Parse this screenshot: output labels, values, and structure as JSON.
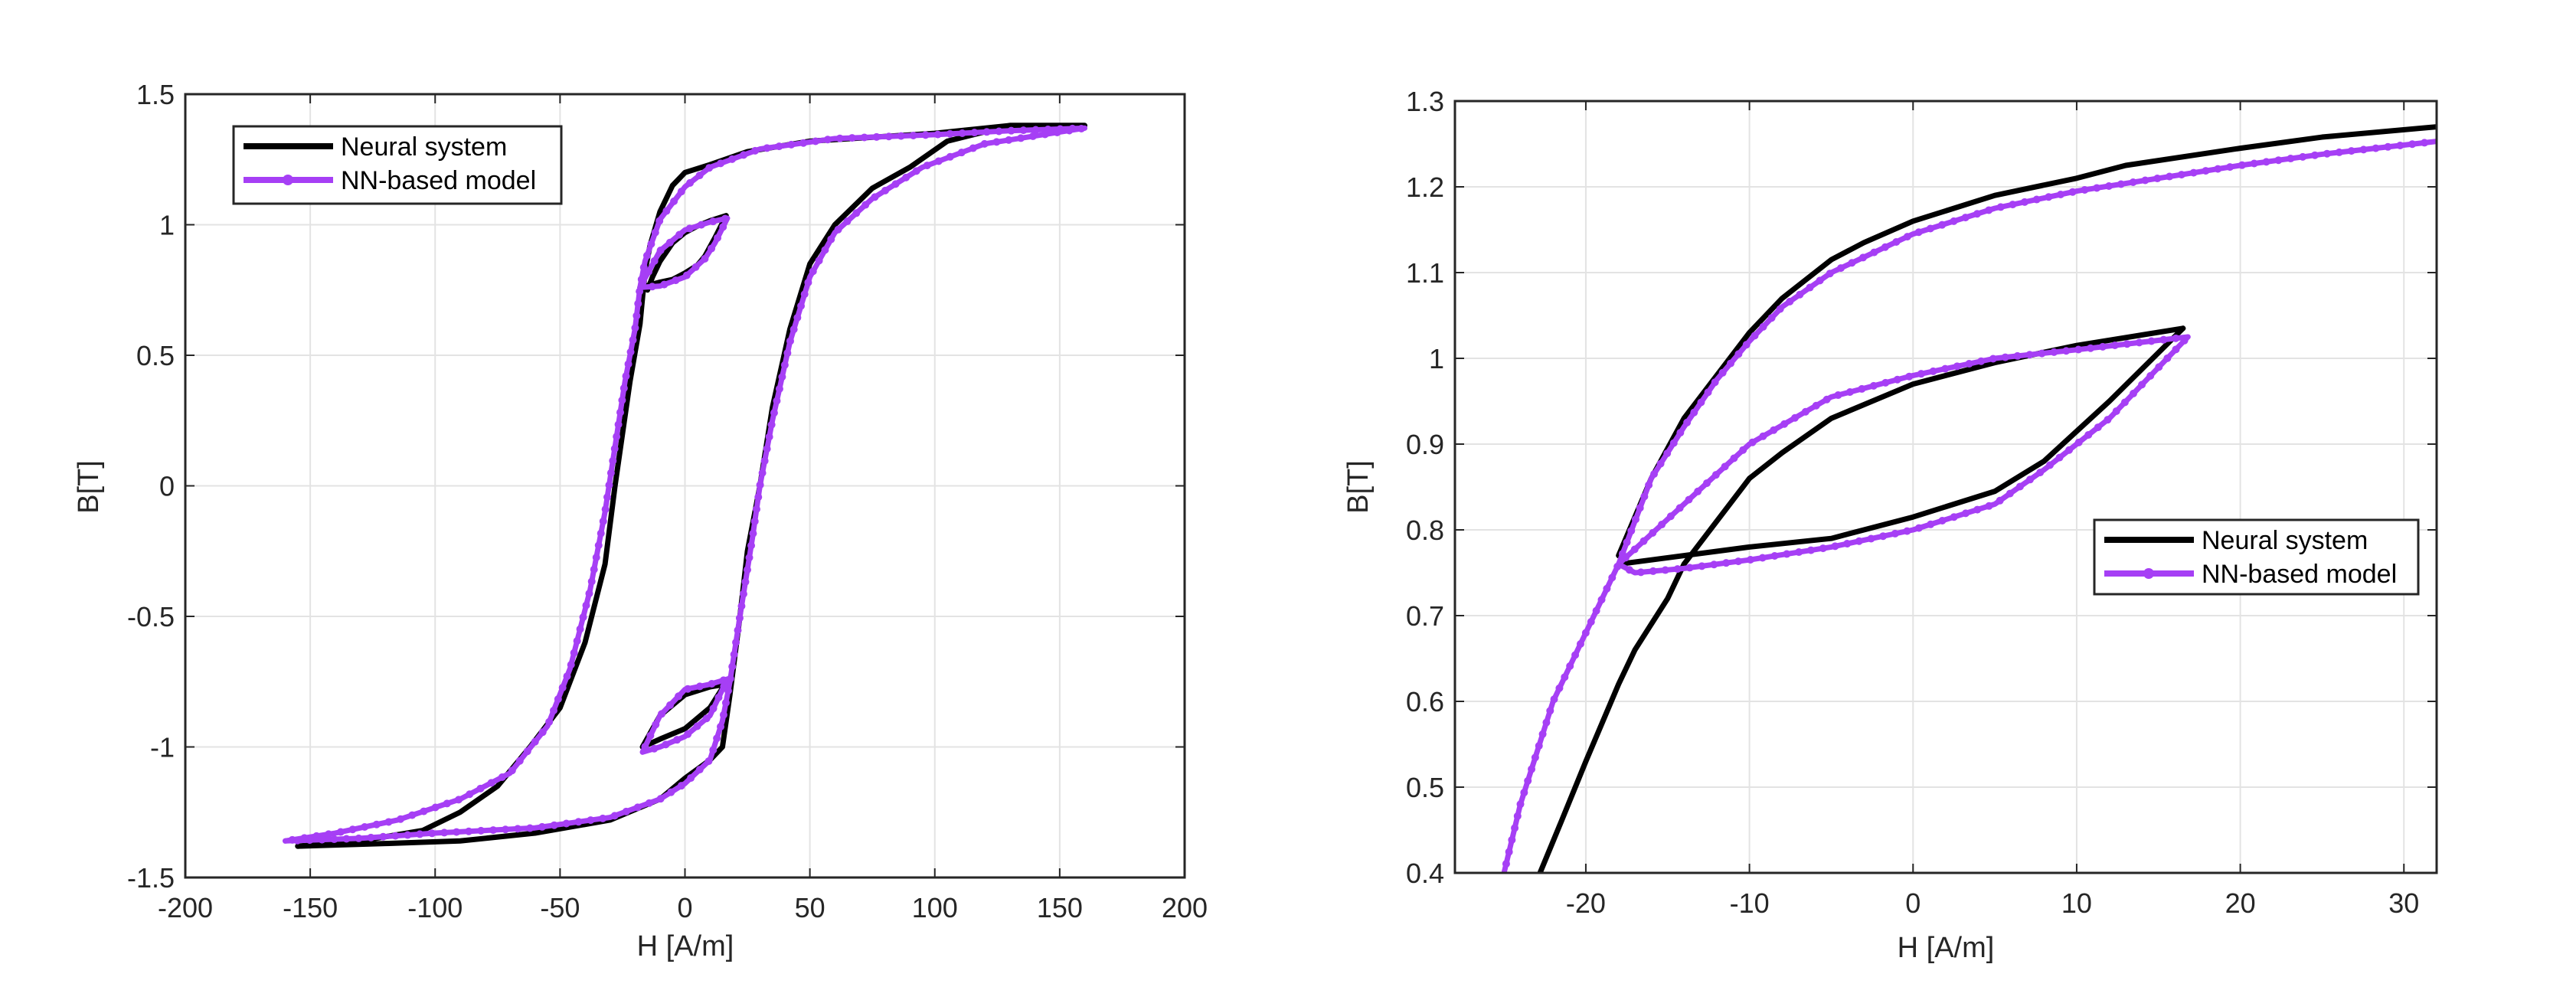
{
  "chart_data": [
    {
      "type": "line",
      "xlabel": "H [A/m]",
      "ylabel": "B[T]",
      "xlim": [
        -200,
        200
      ],
      "ylim": [
        -1.5,
        1.5
      ],
      "xticks": [
        -200,
        -150,
        -100,
        -50,
        0,
        50,
        100,
        150,
        200
      ],
      "xtick_labels": [
        "-200",
        "-150",
        "-100",
        "-50",
        "0",
        "50",
        "100",
        "150",
        "200"
      ],
      "yticks": [
        -1.5,
        -1,
        -0.5,
        0,
        0.5,
        1,
        1.5
      ],
      "ytick_labels": [
        "-1.5",
        "-1",
        "-0.5",
        "0",
        "0.5",
        "1",
        "1.5"
      ],
      "grid": true,
      "legend_position": "top-left",
      "series": [
        {
          "name": "Neural system",
          "color": "#000000",
          "markers": false,
          "paths": [
            [
              [
                160,
                1.38
              ],
              [
                130,
                1.38
              ],
              [
                100,
                1.35
              ],
              [
                75,
                1.335
              ],
              [
                50,
                1.32
              ],
              [
                25,
                1.28
              ],
              [
                10,
                1.23
              ],
              [
                0,
                1.2
              ],
              [
                -5,
                1.15
              ],
              [
                -10,
                1.05
              ],
              [
                -14,
                0.92
              ],
              [
                -16,
                0.82
              ],
              [
                -18,
                0.62
              ],
              [
                -22,
                0.4
              ],
              [
                -25,
                0.2
              ],
              [
                -28,
                0
              ],
              [
                -32,
                -0.3
              ],
              [
                -40,
                -0.6
              ],
              [
                -50,
                -0.85
              ],
              [
                -62,
                -1.0
              ],
              [
                -75,
                -1.15
              ],
              [
                -90,
                -1.25
              ],
              [
                -105,
                -1.32
              ],
              [
                -130,
                -1.36
              ],
              [
                -155,
                -1.38
              ]
            ],
            [
              [
                -155,
                -1.38
              ],
              [
                -120,
                -1.37
              ],
              [
                -90,
                -1.36
              ],
              [
                -60,
                -1.33
              ],
              [
                -30,
                -1.28
              ],
              [
                -10,
                -1.2
              ],
              [
                0,
                -1.12
              ],
              [
                10,
                -1.05
              ],
              [
                15,
                -1.0
              ],
              [
                18,
                -0.8
              ],
              [
                22,
                -0.5
              ],
              [
                25,
                -0.25
              ],
              [
                30,
                0
              ],
              [
                35,
                0.3
              ],
              [
                42,
                0.6
              ],
              [
                50,
                0.85
              ],
              [
                60,
                1.0
              ],
              [
                75,
                1.14
              ],
              [
                90,
                1.22
              ],
              [
                105,
                1.32
              ],
              [
                130,
                1.38
              ],
              [
                160,
                1.38
              ]
            ],
            [
              [
                -18,
                0.76
              ],
              [
                -10,
                0.78
              ],
              [
                -5,
                0.79
              ],
              [
                0,
                0.815
              ],
              [
                5,
                0.845
              ],
              [
                8,
                0.88
              ],
              [
                12,
                0.95
              ],
              [
                16.5,
                1.035
              ],
              [
                10,
                1.015
              ],
              [
                5,
                0.995
              ],
              [
                0,
                0.97
              ],
              [
                -5,
                0.93
              ],
              [
                -10,
                0.86
              ],
              [
                -13,
                0.8
              ],
              [
                -15,
                0.75
              ]
            ],
            [
              [
                -17,
                -1.0
              ],
              [
                -10,
                -0.97
              ],
              [
                0,
                -0.93
              ],
              [
                10,
                -0.85
              ],
              [
                16,
                -0.76
              ],
              [
                10,
                -0.77
              ],
              [
                0,
                -0.8
              ],
              [
                -10,
                -0.88
              ],
              [
                -17,
                -1.0
              ]
            ]
          ]
        },
        {
          "name": "NN-based model",
          "color": "#a63ff5",
          "markers": true,
          "paths": [
            [
              [
                160,
                1.37
              ],
              [
                130,
                1.36
              ],
              [
                100,
                1.345
              ],
              [
                60,
                1.33
              ],
              [
                30,
                1.29
              ],
              [
                10,
                1.22
              ],
              [
                0,
                1.145
              ],
              [
                -10,
                1.02
              ],
              [
                -16,
                0.86
              ],
              [
                -18,
                0.76
              ],
              [
                -20,
                0.6
              ],
              [
                -24,
                0.4
              ],
              [
                -28,
                0.15
              ],
              [
                -32,
                -0.1
              ],
              [
                -38,
                -0.4
              ],
              [
                -46,
                -0.7
              ],
              [
                -55,
                -0.92
              ],
              [
                -70,
                -1.1
              ],
              [
                -90,
                -1.2
              ],
              [
                -115,
                -1.28
              ],
              [
                -140,
                -1.33
              ],
              [
                -160,
                -1.36
              ]
            ],
            [
              [
                -160,
                -1.36
              ],
              [
                -130,
                -1.35
              ],
              [
                -100,
                -1.33
              ],
              [
                -60,
                -1.31
              ],
              [
                -30,
                -1.27
              ],
              [
                -10,
                -1.2
              ],
              [
                0,
                -1.14
              ],
              [
                10,
                -1.05
              ],
              [
                15,
                -0.9
              ],
              [
                18,
                -0.75
              ],
              [
                22,
                -0.5
              ],
              [
                27,
                -0.2
              ],
              [
                30,
                0
              ],
              [
                35,
                0.25
              ],
              [
                42,
                0.55
              ],
              [
                50,
                0.8
              ],
              [
                60,
                0.97
              ],
              [
                75,
                1.1
              ],
              [
                95,
                1.22
              ],
              [
                120,
                1.31
              ],
              [
                160,
                1.37
              ]
            ],
            [
              [
                -18,
                0.76
              ],
              [
                -10,
                0.765
              ],
              [
                0,
                0.8
              ],
              [
                8,
                0.87
              ],
              [
                12,
                0.93
              ],
              [
                17,
                1.025
              ],
              [
                10,
                1.01
              ],
              [
                0,
                0.98
              ],
              [
                -10,
                0.9
              ],
              [
                -18,
                0.76
              ]
            ],
            [
              [
                -17,
                -1.02
              ],
              [
                -10,
                -1.0
              ],
              [
                0,
                -0.96
              ],
              [
                10,
                -0.88
              ],
              [
                17,
                -0.74
              ],
              [
                10,
                -0.76
              ],
              [
                0,
                -0.78
              ],
              [
                -10,
                -0.88
              ],
              [
                -17,
                -1.02
              ]
            ]
          ]
        }
      ]
    },
    {
      "type": "line",
      "xlabel": "H [A/m]",
      "ylabel": "B[T]",
      "xlim": [
        -28,
        32
      ],
      "ylim": [
        0.4,
        1.3
      ],
      "xticks": [
        -20,
        -10,
        0,
        10,
        20,
        30
      ],
      "xtick_labels": [
        "-20",
        "-10",
        "0",
        "10",
        "20",
        "30"
      ],
      "yticks": [
        0.4,
        0.5,
        0.6,
        0.7,
        0.8,
        0.9,
        1,
        1.1,
        1.2,
        1.3
      ],
      "ytick_labels": [
        "0.4",
        "0.5",
        "0.6",
        "0.7",
        "0.8",
        "0.9",
        "1",
        "1.1",
        "1.2",
        "1.3"
      ],
      "grid": true,
      "legend_position": "right",
      "series": [
        {
          "name": "Neural system",
          "color": "#000000",
          "markers": false,
          "paths": [
            [
              [
                32,
                1.27
              ],
              [
                25,
                1.258
              ],
              [
                20,
                1.245
              ],
              [
                13,
                1.225
              ],
              [
                10,
                1.21
              ],
              [
                5,
                1.19
              ],
              [
                0,
                1.16
              ],
              [
                -3,
                1.135
              ],
              [
                -5,
                1.115
              ],
              [
                -8,
                1.07
              ],
              [
                -10,
                1.03
              ],
              [
                -12,
                0.98
              ],
              [
                -14,
                0.93
              ],
              [
                -16,
                0.86
              ],
              [
                -18,
                0.77
              ]
            ],
            [
              [
                -18,
                0.76
              ],
              [
                -10,
                0.78
              ],
              [
                -5,
                0.79
              ],
              [
                0,
                0.815
              ],
              [
                5,
                0.845
              ],
              [
                8,
                0.88
              ],
              [
                12,
                0.95
              ],
              [
                16.5,
                1.035
              ]
            ],
            [
              [
                16.5,
                1.035
              ],
              [
                10,
                1.015
              ],
              [
                5,
                0.995
              ],
              [
                0,
                0.97
              ],
              [
                -5,
                0.93
              ],
              [
                -8,
                0.89
              ],
              [
                -10,
                0.86
              ],
              [
                -12,
                0.81
              ],
              [
                -14,
                0.76
              ],
              [
                -15,
                0.72
              ],
              [
                -17,
                0.66
              ],
              [
                -18,
                0.62
              ],
              [
                -20,
                0.53
              ],
              [
                -21.5,
                0.46
              ],
              [
                -22.8,
                0.4
              ]
            ]
          ]
        },
        {
          "name": "NN-based model",
          "color": "#a63ff5",
          "markers": true,
          "paths": [
            [
              [
                32,
                1.253
              ],
              [
                25,
                1.238
              ],
              [
                20,
                1.225
              ],
              [
                15,
                1.21
              ],
              [
                10,
                1.195
              ],
              [
                5,
                1.175
              ],
              [
                0,
                1.145
              ],
              [
                -5,
                1.1
              ],
              [
                -8,
                1.06
              ],
              [
                -10,
                1.02
              ],
              [
                -12,
                0.975
              ],
              [
                -14,
                0.92
              ],
              [
                -16,
                0.86
              ],
              [
                -18,
                0.76
              ]
            ],
            [
              [
                -18,
                0.76
              ],
              [
                -17,
                0.75
              ],
              [
                -14,
                0.755
              ],
              [
                -10,
                0.765
              ],
              [
                -5,
                0.78
              ],
              [
                0,
                0.8
              ],
              [
                5,
                0.83
              ],
              [
                8,
                0.87
              ],
              [
                12,
                0.93
              ],
              [
                16.8,
                1.025
              ]
            ],
            [
              [
                16.8,
                1.025
              ],
              [
                10,
                1.01
              ],
              [
                5,
                1.0
              ],
              [
                0,
                0.98
              ],
              [
                -5,
                0.955
              ],
              [
                -10,
                0.9
              ],
              [
                -14,
                0.83
              ],
              [
                -18,
                0.76
              ],
              [
                -20,
                0.68
              ],
              [
                -22,
                0.6
              ],
              [
                -23,
                0.54
              ],
              [
                -24,
                0.48
              ],
              [
                -25,
                0.4
              ]
            ]
          ]
        }
      ]
    }
  ]
}
